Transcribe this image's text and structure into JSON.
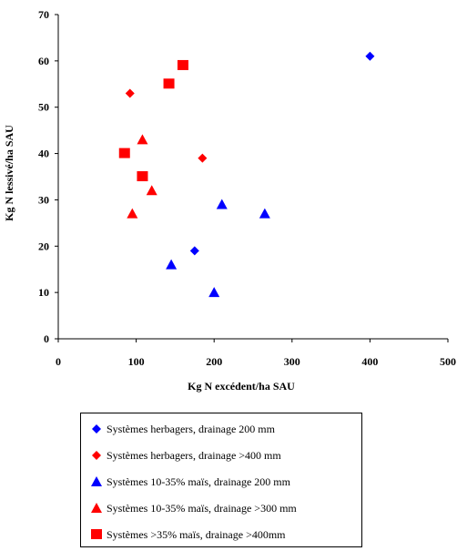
{
  "chart_data": {
    "type": "scatter",
    "title": "",
    "xlabel": "Kg N excédent/ha SAU",
    "ylabel": "Kg N lessivé/ha SAU",
    "xlim": [
      0,
      500
    ],
    "ylim": [
      0,
      70
    ],
    "xticks": [
      0,
      100,
      200,
      300,
      400,
      500
    ],
    "yticks": [
      0,
      10,
      20,
      30,
      40,
      50,
      60,
      70
    ],
    "grid": false,
    "legend_position": "bottom",
    "series": [
      {
        "name": "Systèmes herbagers, drainage 200 mm",
        "marker": "diamond",
        "color": "#0000ff",
        "points": [
          [
            400,
            61
          ],
          [
            175,
            19
          ]
        ]
      },
      {
        "name": "Systèmes herbagers, drainage >400 mm",
        "marker": "diamond",
        "color": "#ff0000",
        "points": [
          [
            92,
            53
          ],
          [
            185,
            39
          ]
        ]
      },
      {
        "name": "Systèmes 10-35% maïs, drainage 200 mm",
        "marker": "triangle",
        "color": "#0000ff",
        "points": [
          [
            210,
            29
          ],
          [
            265,
            27
          ],
          [
            145,
            16
          ],
          [
            200,
            10
          ]
        ]
      },
      {
        "name": "Systèmes 10-35% maïs, drainage >300 mm",
        "marker": "triangle",
        "color": "#ff0000",
        "points": [
          [
            108,
            43
          ],
          [
            120,
            32
          ],
          [
            95,
            27
          ]
        ]
      },
      {
        "name": "Systèmes >35% maïs, drainage >400mm",
        "marker": "square",
        "color": "#ff0000",
        "points": [
          [
            160,
            59
          ],
          [
            142,
            55
          ],
          [
            85,
            40
          ],
          [
            108,
            35
          ]
        ]
      }
    ]
  }
}
